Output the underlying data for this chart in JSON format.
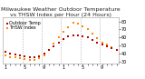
{
  "title": "Milwaukee Weather Outdoor Temperature vs THSW Index per Hour (24 Hours)",
  "legend": [
    "Outdoor Temp",
    "THSW Index"
  ],
  "hours": [
    0,
    1,
    2,
    3,
    4,
    5,
    6,
    7,
    8,
    9,
    10,
    11,
    12,
    13,
    14,
    15,
    16,
    17,
    18,
    19,
    20,
    21,
    22,
    23
  ],
  "temp": [
    42,
    40,
    39,
    38,
    37,
    36,
    36,
    37,
    40,
    44,
    49,
    54,
    58,
    61,
    63,
    63,
    62,
    60,
    57,
    54,
    51,
    49,
    47,
    45
  ],
  "thsw": [
    38,
    36,
    35,
    34,
    33,
    32,
    32,
    34,
    38,
    44,
    52,
    60,
    67,
    73,
    78,
    77,
    74,
    70,
    65,
    59,
    54,
    51,
    48,
    44
  ],
  "temp_color": "#bb0000",
  "thsw_color": "#ff8800",
  "background_color": "#ffffff",
  "ylim": [
    28,
    85
  ],
  "yticks": [
    30,
    40,
    50,
    60,
    70,
    80
  ],
  "ytick_labels": [
    "30",
    "40",
    "50",
    "60",
    "70",
    "80"
  ],
  "xtick_positions": [
    0,
    1,
    2,
    3,
    4,
    5,
    6,
    7,
    8,
    9,
    10,
    11,
    12,
    13,
    14,
    15,
    16,
    17,
    18,
    19,
    20,
    21,
    22,
    23
  ],
  "xtick_labels": [
    "1",
    "",
    "",
    "",
    "5",
    "",
    "",
    "",
    "9",
    "",
    "",
    "",
    "1",
    "",
    "",
    "",
    "5",
    "",
    "",
    "",
    "9",
    "",
    "",
    ""
  ],
  "vgrid_x": [
    3.5,
    7.5,
    11.5,
    15.5,
    19.5
  ],
  "title_fontsize": 4.5,
  "legend_fontsize": 3.5,
  "tick_fontsize": 3.5,
  "marker_size": 1.5
}
